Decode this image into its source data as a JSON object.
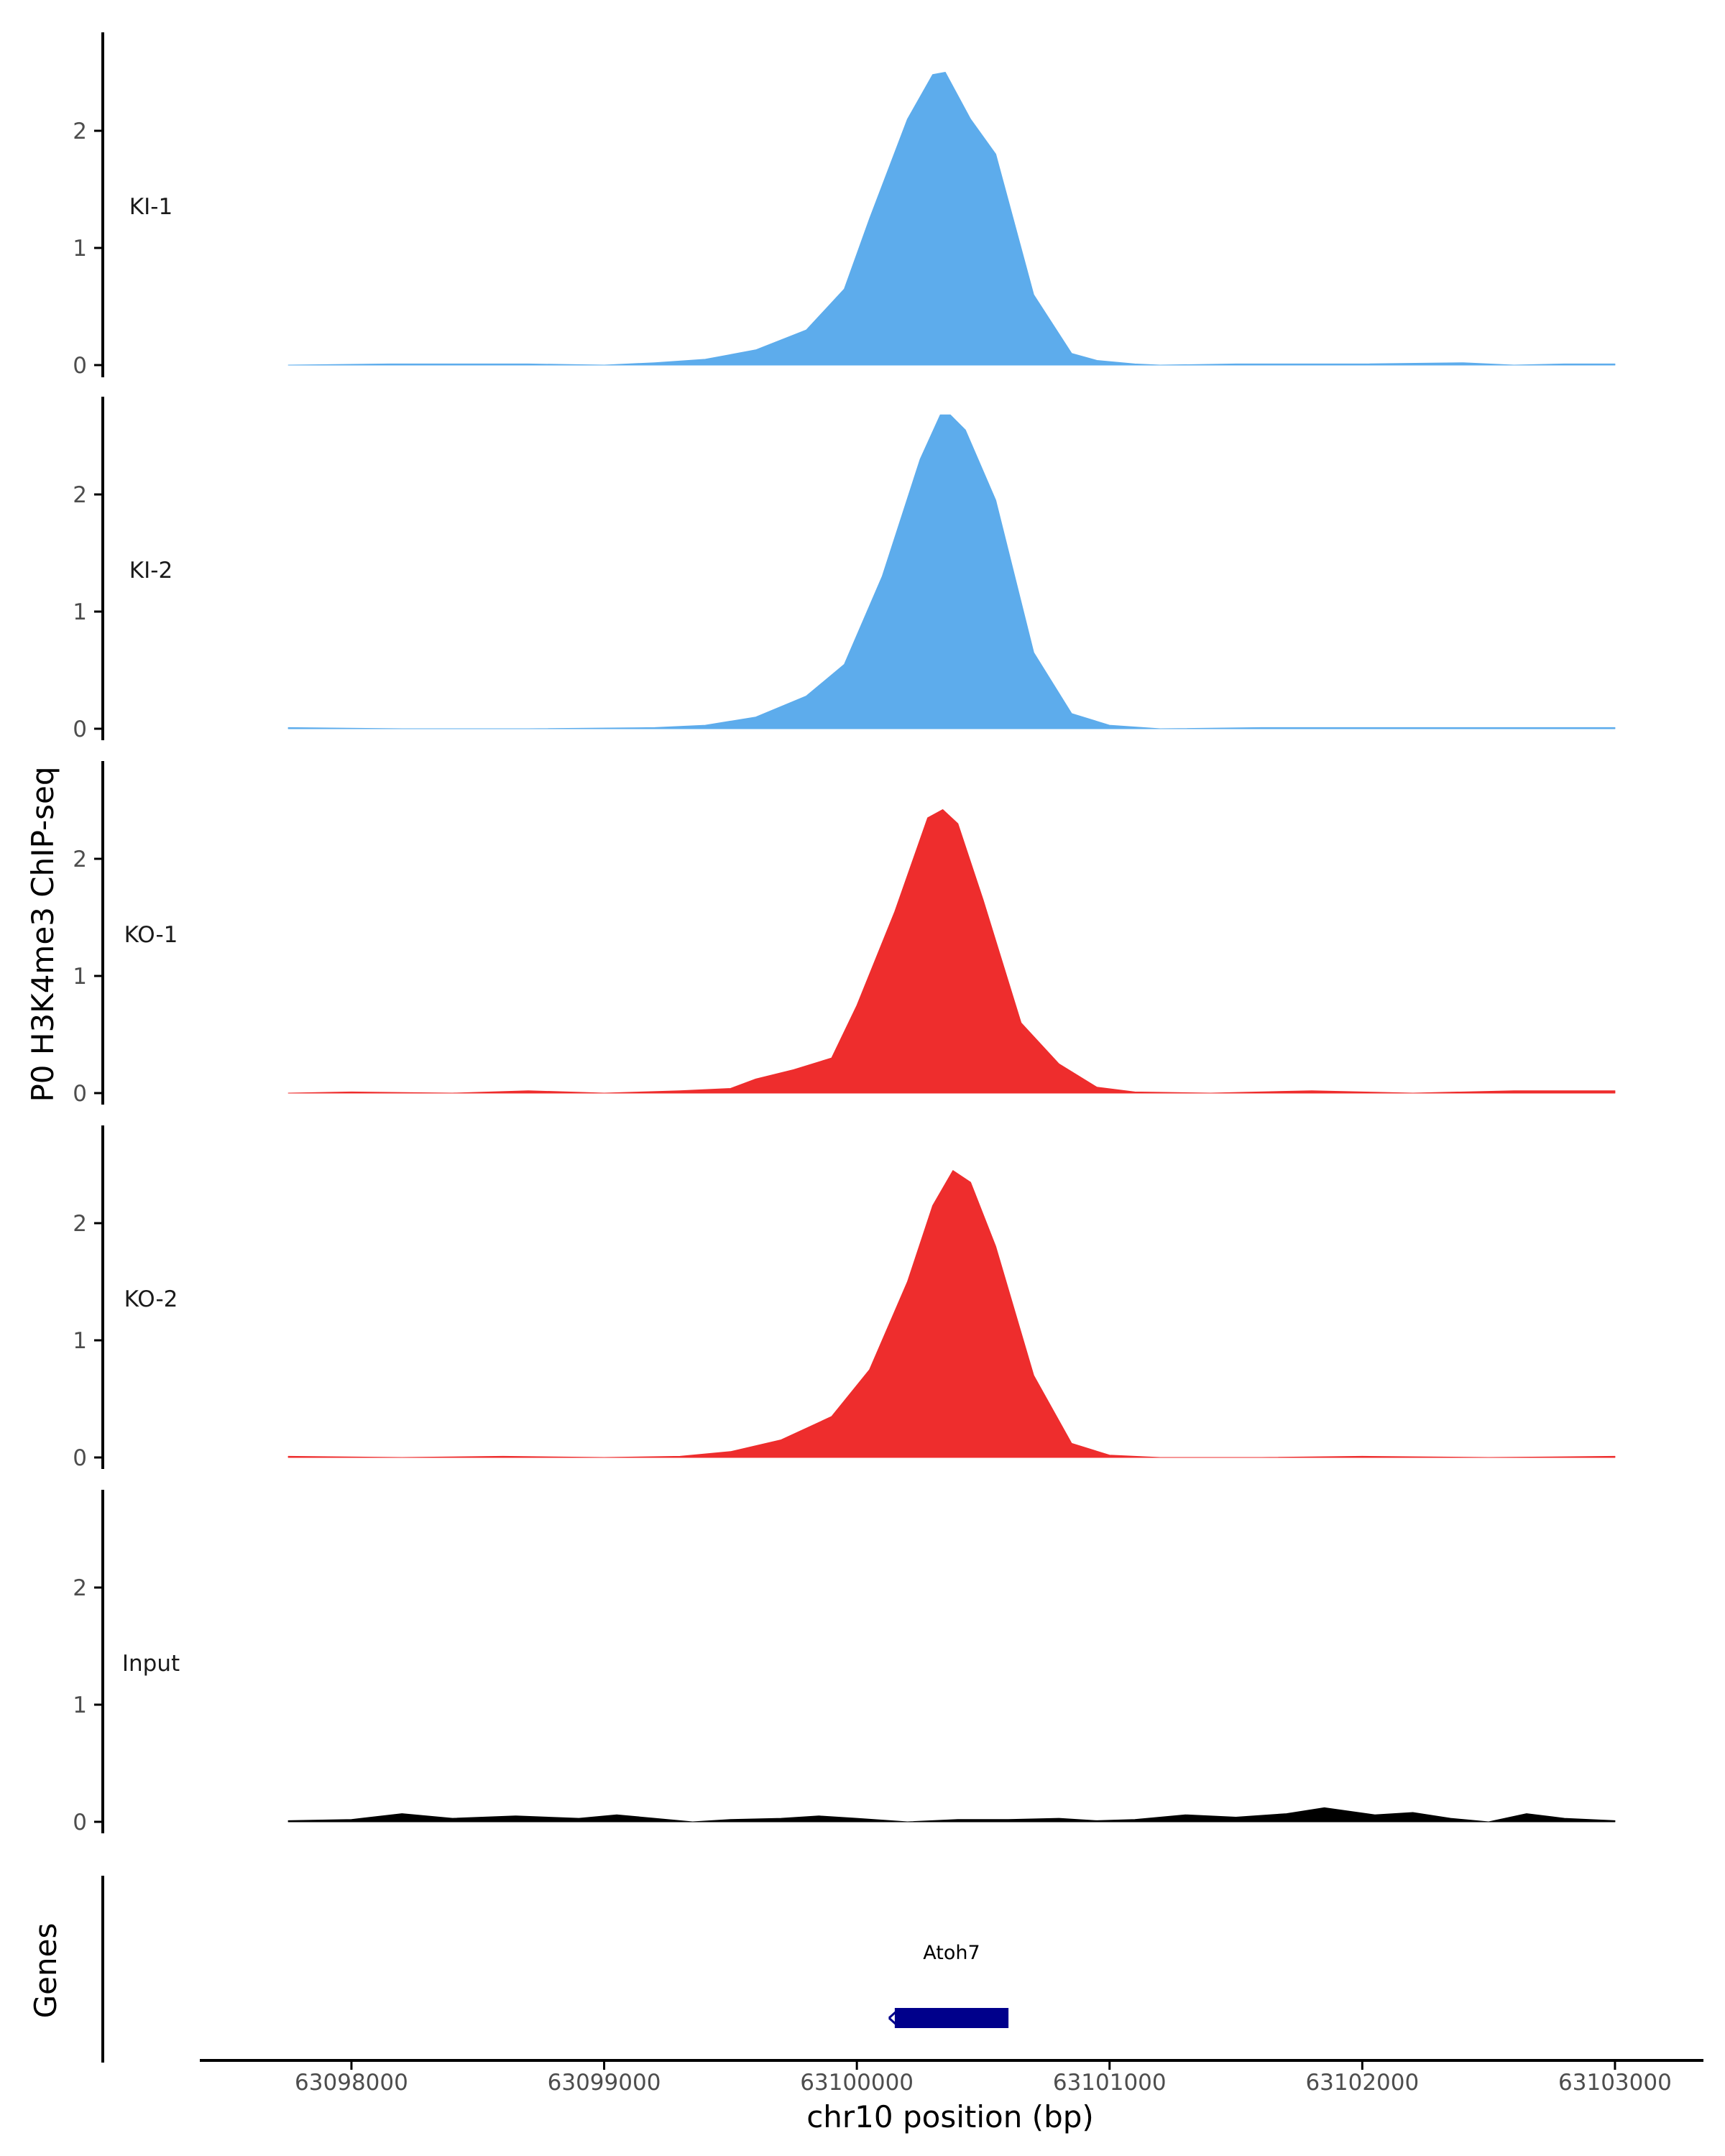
{
  "chart_data": {
    "type": "area",
    "y_axis_title": "P0 H3K4me3 ChIP-seq",
    "x_axis_title": "chr10 position (bp)",
    "genes_axis_title": "Genes",
    "xlim": [
      63097400,
      63103350
    ],
    "ylim": [
      0,
      2.8
    ],
    "x_ticks": [
      63098000,
      63099000,
      63100000,
      63101000,
      63102000,
      63103000
    ],
    "y_ticks": [
      0,
      1,
      2
    ],
    "grid": false,
    "tracks": [
      {
        "name": "KI-1",
        "color": "#5DACEC",
        "x": [
          63097750,
          63098150,
          63098700,
          63099000,
          63099200,
          63099400,
          63099600,
          63099800,
          63099950,
          63100050,
          63100200,
          63100300,
          63100350,
          63100450,
          63100550,
          63100700,
          63100850,
          63100950,
          63101100,
          63101200,
          63101500,
          63102000,
          63102400,
          63102600,
          63102800,
          63103000
        ],
        "y": [
          0.0,
          0.01,
          0.01,
          0.0,
          0.02,
          0.05,
          0.13,
          0.3,
          0.65,
          1.25,
          2.1,
          2.48,
          2.5,
          2.1,
          1.8,
          0.6,
          0.1,
          0.04,
          0.01,
          0.0,
          0.01,
          0.01,
          0.02,
          0.0,
          0.01,
          0.01
        ]
      },
      {
        "name": "KI-2",
        "color": "#5DACEC",
        "x": [
          63097750,
          63098200,
          63098700,
          63099200,
          63099400,
          63099600,
          63099800,
          63099950,
          63100100,
          63100250,
          63100330,
          63100370,
          63100430,
          63100550,
          63100700,
          63100850,
          63101000,
          63101200,
          63101600,
          63102000,
          63102500,
          63103000
        ],
        "y": [
          0.01,
          0.0,
          0.0,
          0.01,
          0.03,
          0.1,
          0.28,
          0.55,
          1.3,
          2.3,
          2.68,
          2.68,
          2.55,
          1.95,
          0.65,
          0.13,
          0.03,
          0.0,
          0.01,
          0.01,
          0.01,
          0.01
        ],
        "ylim": [
          0,
          2.8
        ]
      },
      {
        "name": "KO-1",
        "color": "#EE2D2D",
        "x": [
          63097750,
          63098000,
          63098400,
          63098700,
          63099000,
          63099300,
          63099500,
          63099600,
          63099750,
          63099900,
          63100000,
          63100150,
          63100280,
          63100340,
          63100400,
          63100500,
          63100650,
          63100800,
          63100950,
          63101100,
          63101400,
          63101800,
          63102200,
          63102600,
          63103000
        ],
        "y": [
          0.0,
          0.01,
          0.0,
          0.02,
          0.0,
          0.02,
          0.04,
          0.12,
          0.2,
          0.3,
          0.75,
          1.55,
          2.35,
          2.42,
          2.3,
          1.65,
          0.6,
          0.25,
          0.05,
          0.01,
          0.0,
          0.02,
          0.0,
          0.02,
          0.02
        ]
      },
      {
        "name": "KO-2",
        "color": "#EE2D2D",
        "x": [
          63097750,
          63098200,
          63098600,
          63099000,
          63099300,
          63099500,
          63099700,
          63099900,
          63100050,
          63100200,
          63100300,
          63100380,
          63100450,
          63100550,
          63100700,
          63100850,
          63101000,
          63101200,
          63101600,
          63102000,
          63102500,
          63103000
        ],
        "y": [
          0.01,
          0.0,
          0.01,
          0.0,
          0.01,
          0.05,
          0.15,
          0.35,
          0.75,
          1.5,
          2.15,
          2.45,
          2.35,
          1.8,
          0.7,
          0.12,
          0.02,
          0.0,
          0.0,
          0.01,
          0.0,
          0.01
        ]
      },
      {
        "name": "Input",
        "color": "#000000",
        "x": [
          63097750,
          63098000,
          63098200,
          63098400,
          63098650,
          63098900,
          63099050,
          63099200,
          63099350,
          63099500,
          63099700,
          63099850,
          63100000,
          63100200,
          63100400,
          63100600,
          63100800,
          63100950,
          63101100,
          63101300,
          63101500,
          63101700,
          63101850,
          63102050,
          63102200,
          63102350,
          63102500,
          63102650,
          63102800,
          63103000
        ],
        "y": [
          0.01,
          0.02,
          0.07,
          0.03,
          0.05,
          0.03,
          0.06,
          0.03,
          0.0,
          0.02,
          0.03,
          0.05,
          0.03,
          0.0,
          0.02,
          0.02,
          0.03,
          0.01,
          0.02,
          0.06,
          0.04,
          0.07,
          0.12,
          0.06,
          0.08,
          0.03,
          0.0,
          0.07,
          0.03,
          0.01
        ]
      }
    ],
    "genes": [
      {
        "name": "Atoh7",
        "start": 63100150,
        "end": 63100600,
        "strand": "-",
        "color": "#00008B"
      }
    ]
  }
}
